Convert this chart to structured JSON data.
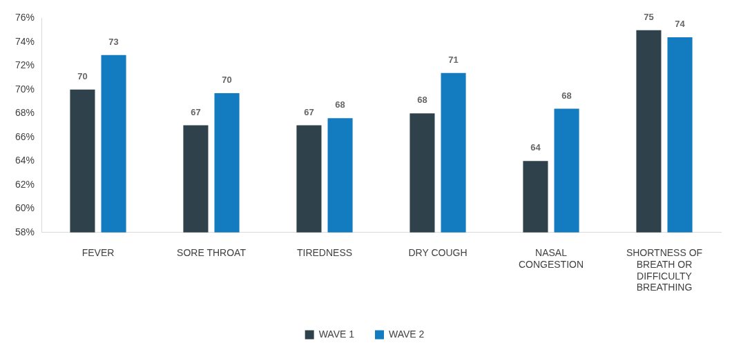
{
  "chart_data": {
    "type": "bar",
    "categories": [
      "FEVER",
      "SORE THROAT",
      "TIREDNESS",
      "DRY COUGH",
      "NASAL CONGESTION",
      "SHORTNESS OF BREATH OR DIFFICULTY BREATHING"
    ],
    "series": [
      {
        "name": "WAVE 1",
        "color": "#2f424c",
        "values": [
          70,
          67,
          67,
          68,
          64,
          75
        ],
        "value_labels": [
          "70",
          "67",
          "67",
          "68",
          "64",
          "75"
        ]
      },
      {
        "name": "WAVE 2",
        "color": "#137bbf",
        "values": [
          72.9,
          69.7,
          67.6,
          71.4,
          68.4,
          74.4
        ],
        "value_labels": [
          "73",
          "70",
          "68",
          "71",
          "68",
          "74"
        ]
      }
    ],
    "ylim": [
      58,
      76
    ],
    "yticks": [
      {
        "value": 58,
        "label": "58%"
      },
      {
        "value": 60,
        "label": "60%"
      },
      {
        "value": 62,
        "label": "62%"
      },
      {
        "value": 64,
        "label": "64%"
      },
      {
        "value": 66,
        "label": "66%"
      },
      {
        "value": 68,
        "label": "68%"
      },
      {
        "value": 70,
        "label": "70%"
      },
      {
        "value": 72,
        "label": "72%"
      },
      {
        "value": 74,
        "label": "74%"
      },
      {
        "value": 76,
        "label": "76%"
      }
    ],
    "grid": false,
    "legend": "bottom"
  }
}
